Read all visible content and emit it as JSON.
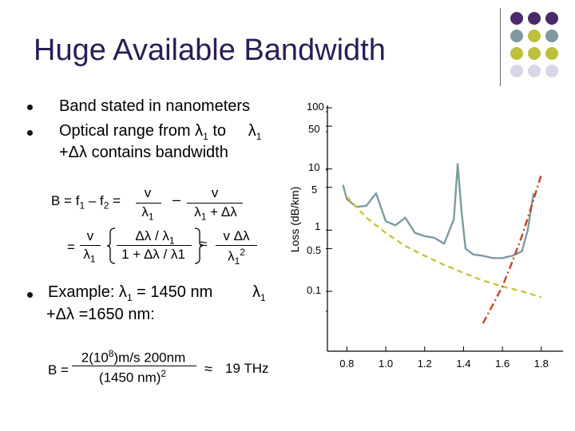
{
  "slide": {
    "title": "Huge Available Bandwidth",
    "bullets": [
      {
        "text": "Band stated in nanometers"
      },
      {
        "text": "Optical range from λ",
        "sub": "1",
        "tail": " to     λ",
        "tail_sub": "1"
      },
      {
        "text": "+Δλ contains bandwidth"
      }
    ],
    "equation": {
      "lhs": "B = f",
      "f1_sub": "1",
      "minus_f": " – f",
      "f2_sub": "2",
      "eq": " =",
      "v": "v",
      "lambda": "λ",
      "lambda_sub": "1",
      "minus": "–",
      "denom2": "λ",
      "denom2_sub": "1",
      "denom2_tail": " + Δλ",
      "eq2": "=",
      "num3": "Δλ / λ",
      "num3_sub": "1",
      "den3": "1 + Δλ / λ1",
      "approx": "≈",
      "num4": "v Δλ",
      "den4": "λ",
      "den4_sub": "1",
      "den4_sup": "2"
    },
    "example": {
      "line1": "Example: λ",
      "line1_sub": "1",
      "line1_tail": " = 1450 nm",
      "line1_right": "λ",
      "line1_right_sub": "1",
      "line2": "+Δλ =1650 nm:"
    },
    "result": {
      "lhs": "B =",
      "num": "2(10",
      "num_sup": "8",
      "num_tail": ")m/s 200nm",
      "den": "(1450 nm)",
      "den_sup": "2",
      "approx": "≈",
      "value": "19 THz"
    }
  },
  "decor": {
    "dot_colors": [
      "#4b2a6b",
      "#7e9aa0",
      "#bcc03a",
      "#d6d6e4"
    ]
  },
  "chart_data": {
    "type": "line",
    "ylabel": "Loss (dB/km)",
    "y_ticks": [
      "100",
      "50",
      "10",
      "5",
      "1",
      "0.5",
      "0.1"
    ],
    "x_ticks": [
      "0.8",
      "1.0",
      "1.2",
      "1.4",
      "1.6",
      "1.8"
    ],
    "xlim": [
      0.7,
      1.85
    ],
    "y_scale": "log",
    "series": [
      {
        "name": "",
        "color": "#7e9aa0",
        "style": "solid",
        "x": [
          0.78,
          0.8,
          0.85,
          0.9,
          0.95,
          1.0,
          1.05,
          1.1,
          1.15,
          1.2,
          1.25,
          1.3,
          1.35,
          1.37,
          1.39,
          1.41,
          1.45,
          1.5,
          1.55,
          1.6,
          1.65,
          1.7,
          1.73,
          1.76
        ],
        "y": [
          5.5,
          3.2,
          2.4,
          2.5,
          4.0,
          1.4,
          1.2,
          1.6,
          0.9,
          0.8,
          0.75,
          0.6,
          1.5,
          12,
          2.0,
          0.5,
          0.4,
          0.38,
          0.35,
          0.35,
          0.38,
          0.45,
          1.0,
          4.0
        ]
      },
      {
        "name": "",
        "color": "#c8c43a",
        "style": "dashed",
        "x": [
          0.8,
          0.9,
          1.0,
          1.1,
          1.2,
          1.3,
          1.4,
          1.5,
          1.6,
          1.7,
          1.8
        ],
        "y": [
          3.5,
          1.6,
          0.9,
          0.55,
          0.38,
          0.27,
          0.2,
          0.15,
          0.12,
          0.1,
          0.08
        ]
      },
      {
        "name": "",
        "color": "#c0451d",
        "style": "dash-dot",
        "x": [
          1.5,
          1.55,
          1.6,
          1.65,
          1.7,
          1.75,
          1.8
        ],
        "y": [
          0.03,
          0.06,
          0.12,
          0.3,
          0.8,
          2.5,
          8
        ]
      }
    ]
  }
}
